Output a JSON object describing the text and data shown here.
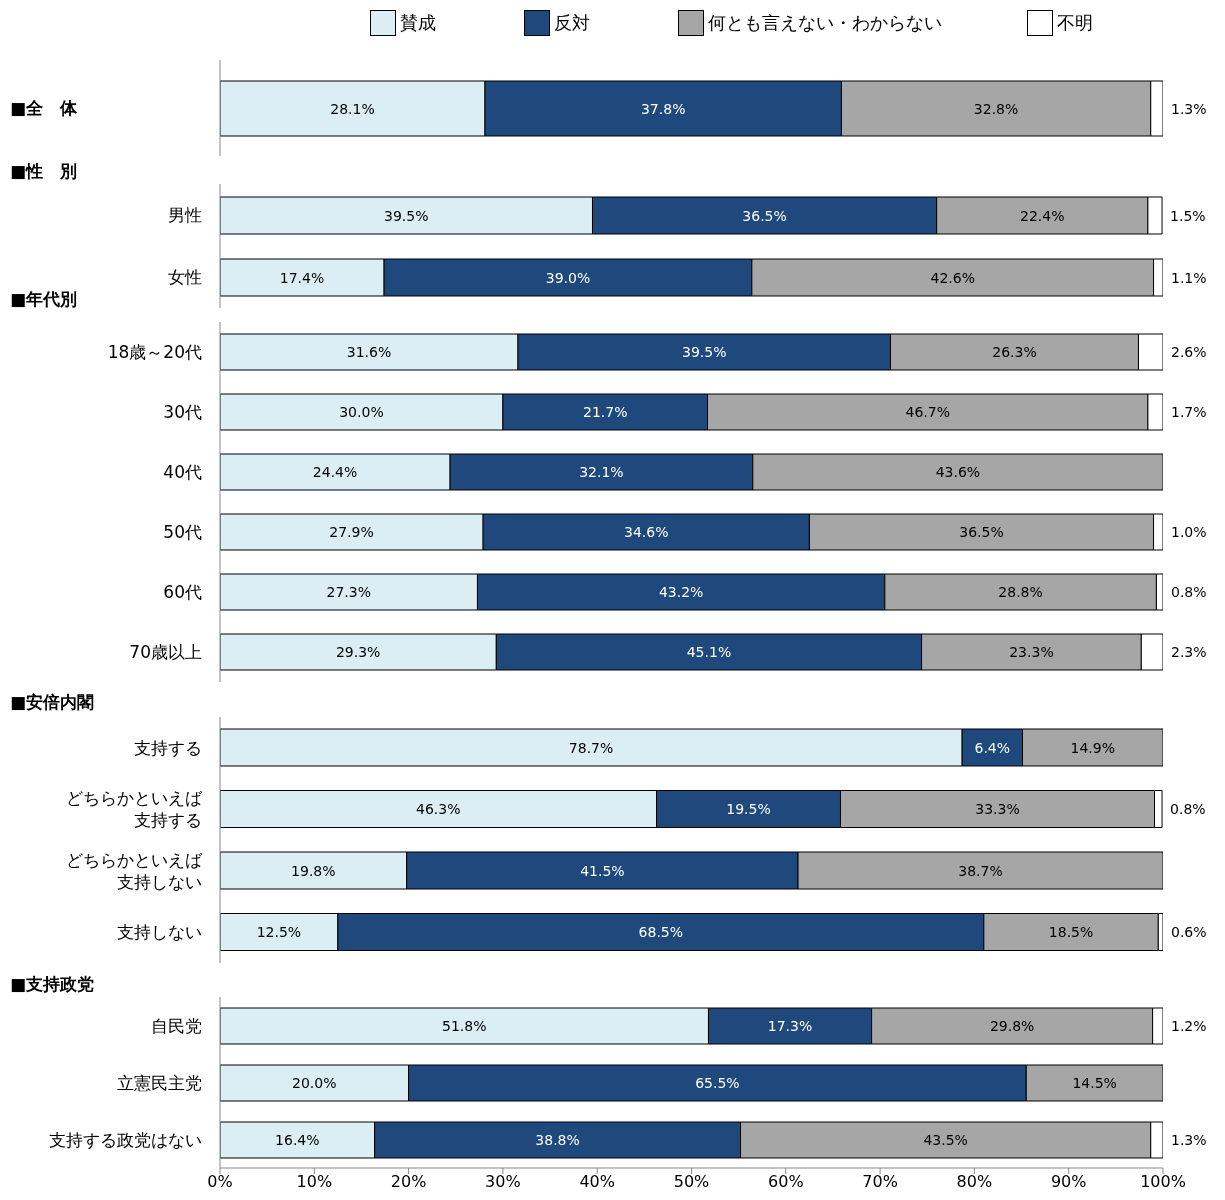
{
  "chart_data": [
    {
      "type": "bar",
      "orientation": "horizontal",
      "stacked": true,
      "legend": "top",
      "tick_labels": "y",
      "categories": [
        "■全　体"
      ],
      "xlim": [
        0,
        100
      ],
      "series": [
        {
          "name": "賛成",
          "color": "#daeef3",
          "values": [
            28.1
          ],
          "value_labels": [
            "28.1%"
          ]
        },
        {
          "name": "反対",
          "color": "#1f497d",
          "values": [
            37.8
          ],
          "value_labels": [
            "37.8%"
          ]
        },
        {
          "name": "何とも言えない・わからない",
          "color": "#a6a6a6",
          "values": [
            32.8
          ],
          "value_labels": [
            "32.8%"
          ]
        },
        {
          "name": "不明",
          "color": "#ffffff",
          "values": [
            1.3
          ],
          "value_labels": [
            "1.3%"
          ]
        }
      ]
    },
    {
      "type": "bar",
      "orientation": "horizontal",
      "stacked": true,
      "tick_labels": "y",
      "title": "■性　別",
      "categories": [
        "男性",
        "女性"
      ],
      "xlim": [
        0,
        100
      ],
      "series": [
        {
          "color": "#daeef3",
          "values": [
            39.5,
            17.4
          ],
          "value_labels": [
            "39.5%",
            "17.4%"
          ]
        },
        {
          "color": "#1f497d",
          "values": [
            36.5,
            39.0
          ],
          "value_labels": [
            "36.5%",
            "39.0%"
          ]
        },
        {
          "color": "#a6a6a6",
          "values": [
            22.4,
            42.6
          ],
          "value_labels": [
            "22.4%",
            "42.6%"
          ]
        },
        {
          "color": "#ffffff",
          "values": [
            1.5,
            1.1
          ],
          "value_labels": [
            "1.5%",
            "1.1%"
          ]
        }
      ]
    },
    {
      "type": "bar",
      "orientation": "horizontal",
      "stacked": true,
      "tick_labels": "y",
      "title": "■年代別",
      "categories": [
        "18歳～20代",
        "30代",
        "40代",
        "50代",
        "60代",
        "70歳以上"
      ],
      "xlim": [
        0,
        100
      ],
      "series": [
        {
          "color": "#daeef3",
          "values": [
            31.6,
            30.0,
            24.4,
            27.9,
            27.3,
            29.3
          ],
          "value_labels": [
            "31.6%",
            "30.0%",
            "24.4%",
            "27.9%",
            "27.3%",
            "29.3%"
          ]
        },
        {
          "color": "#1f497d",
          "values": [
            39.5,
            21.7,
            32.1,
            34.6,
            43.2,
            45.1
          ],
          "value_labels": [
            "39.5%",
            "21.7%",
            "32.1%",
            "34.6%",
            "43.2%",
            "45.1%"
          ]
        },
        {
          "color": "#a6a6a6",
          "values": [
            26.3,
            46.7,
            43.6,
            36.5,
            28.8,
            23.3
          ],
          "value_labels": [
            "26.3%",
            "46.7%",
            "43.6%",
            "36.5%",
            "28.8%",
            "23.3%"
          ]
        },
        {
          "color": "#ffffff",
          "values": [
            2.6,
            1.7,
            null,
            1.0,
            0.8,
            2.3
          ],
          "value_labels": [
            "2.6%",
            "1.7%",
            null,
            "1.0%",
            "0.8%",
            "2.3%"
          ]
        }
      ]
    },
    {
      "type": "bar",
      "orientation": "horizontal",
      "stacked": true,
      "tick_labels": "y",
      "title": "■安倍内閣",
      "categories": [
        "支持する",
        "どちらかといえば支持する",
        "どちらかといえば支持しない",
        "支持しない"
      ],
      "xlim": [
        0,
        100
      ],
      "series": [
        {
          "color": "#daeef3",
          "values": [
            78.7,
            46.3,
            19.8,
            12.5
          ],
          "value_labels": [
            "78.7%",
            "46.3%",
            "19.8%",
            "12.5%"
          ]
        },
        {
          "color": "#1f497d",
          "values": [
            6.4,
            19.5,
            41.5,
            68.5
          ],
          "value_labels": [
            "6.4%",
            "19.5%",
            "41.5%",
            "68.5%"
          ]
        },
        {
          "color": "#a6a6a6",
          "values": [
            14.9,
            33.3,
            38.7,
            18.5
          ],
          "value_labels": [
            "14.9%",
            "33.3%",
            "38.7%",
            "18.5%"
          ]
        },
        {
          "color": "#ffffff",
          "values": [
            null,
            0.8,
            null,
            0.6
          ],
          "value_labels": [
            null,
            "0.8%",
            null,
            "0.6%"
          ]
        }
      ]
    },
    {
      "type": "bar",
      "orientation": "horizontal",
      "stacked": true,
      "title": "■支持政党",
      "categories": [
        "自民党",
        "立憲民主党",
        "支持する政党はない"
      ],
      "xlim": [
        0,
        100
      ],
      "xticks": [
        {
          "value": 0,
          "label": "0%"
        },
        {
          "value": 10,
          "label": "10%"
        },
        {
          "value": 20,
          "label": "20%"
        },
        {
          "value": 30,
          "label": "30%"
        },
        {
          "value": 40,
          "label": "40%"
        },
        {
          "value": 50,
          "label": "50%"
        },
        {
          "value": 60,
          "label": "60%"
        },
        {
          "value": 70,
          "label": "70%"
        },
        {
          "value": 80,
          "label": "80%"
        },
        {
          "value": 90,
          "label": "90%"
        },
        {
          "value": 100,
          "label": "100%"
        }
      ],
      "series": [
        {
          "color": "#daeef3",
          "values": [
            51.8,
            20.0,
            16.4
          ],
          "value_labels": [
            "51.8%",
            "20.0%",
            "16.4%"
          ]
        },
        {
          "color": "#1f497d",
          "values": [
            17.3,
            65.5,
            38.8
          ],
          "value_labels": [
            "17.3%",
            "65.5%",
            "38.8%"
          ]
        },
        {
          "color": "#a6a6a6",
          "values": [
            29.8,
            14.5,
            43.5
          ],
          "value_labels": [
            "29.8%",
            "14.5%",
            "43.5%"
          ]
        },
        {
          "color": "#ffffff",
          "values": [
            1.2,
            null,
            1.3
          ],
          "value_labels": [
            "1.2%",
            null,
            "1.3%"
          ]
        }
      ]
    }
  ]
}
